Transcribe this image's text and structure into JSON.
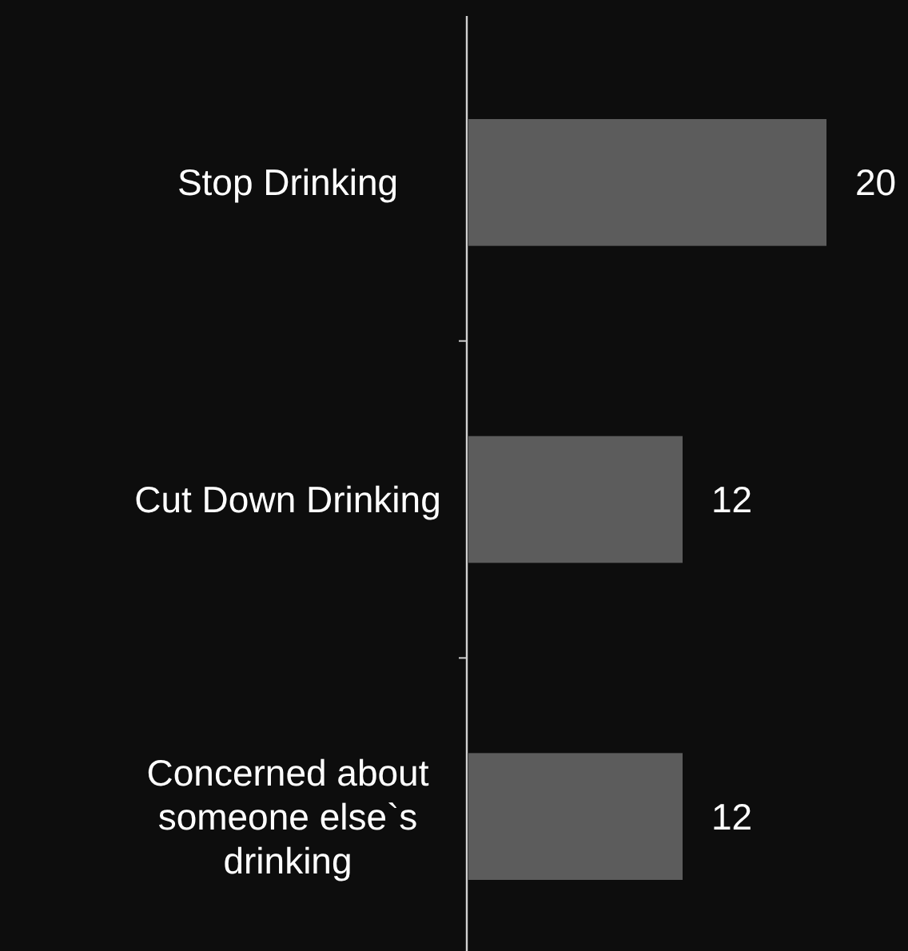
{
  "chart_data": {
    "type": "bar",
    "orientation": "horizontal",
    "categories": [
      "Stop Drinking",
      "Cut Down Drinking",
      "Concerned about someone else`s drinking"
    ],
    "values": [
      20,
      12,
      12
    ],
    "color": "#5c5c5c",
    "data_labels": true
  }
}
